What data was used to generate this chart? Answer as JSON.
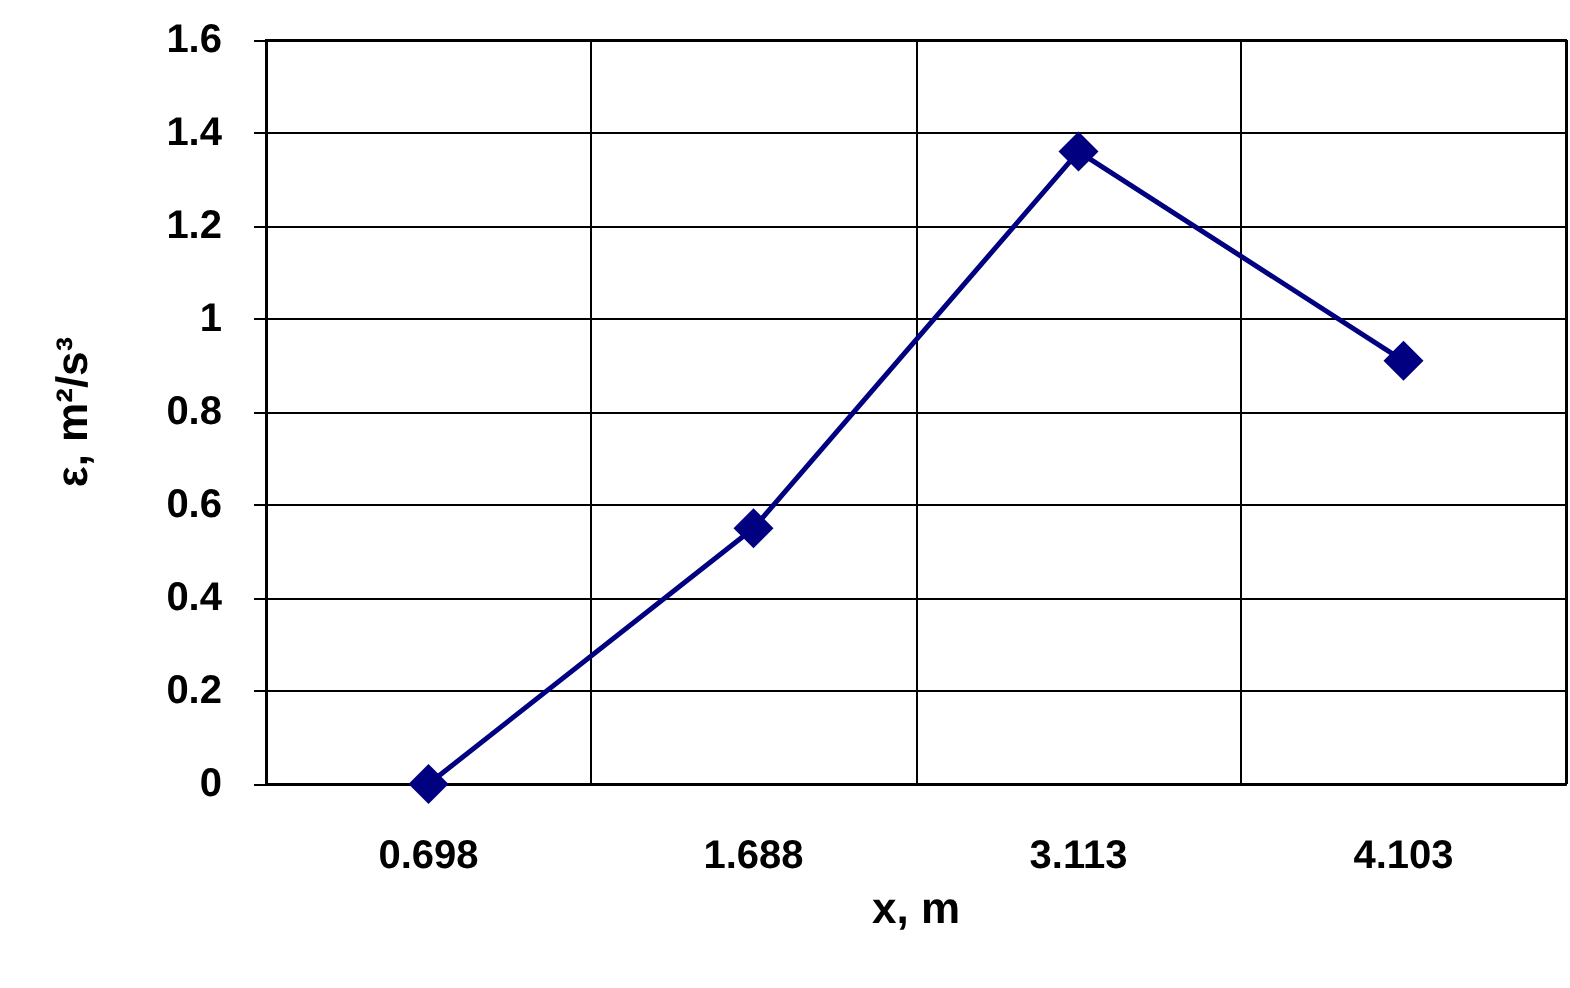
{
  "chart_data": {
    "type": "line",
    "xlabel": "x, m",
    "ylabel": "ε, m²/s³",
    "categories": [
      "0.698",
      "1.688",
      "3.113",
      "4.103"
    ],
    "series": [
      {
        "color": "#000080",
        "values": [
          0,
          0.55,
          1.36,
          0.91
        ]
      }
    ],
    "ylim": [
      0,
      1.6
    ],
    "yticks": [
      0,
      0.2,
      0.4,
      0.6,
      0.8,
      1,
      1.2,
      1.4,
      1.6
    ],
    "grid": true,
    "marker": "diamond",
    "line_style": "solid"
  }
}
